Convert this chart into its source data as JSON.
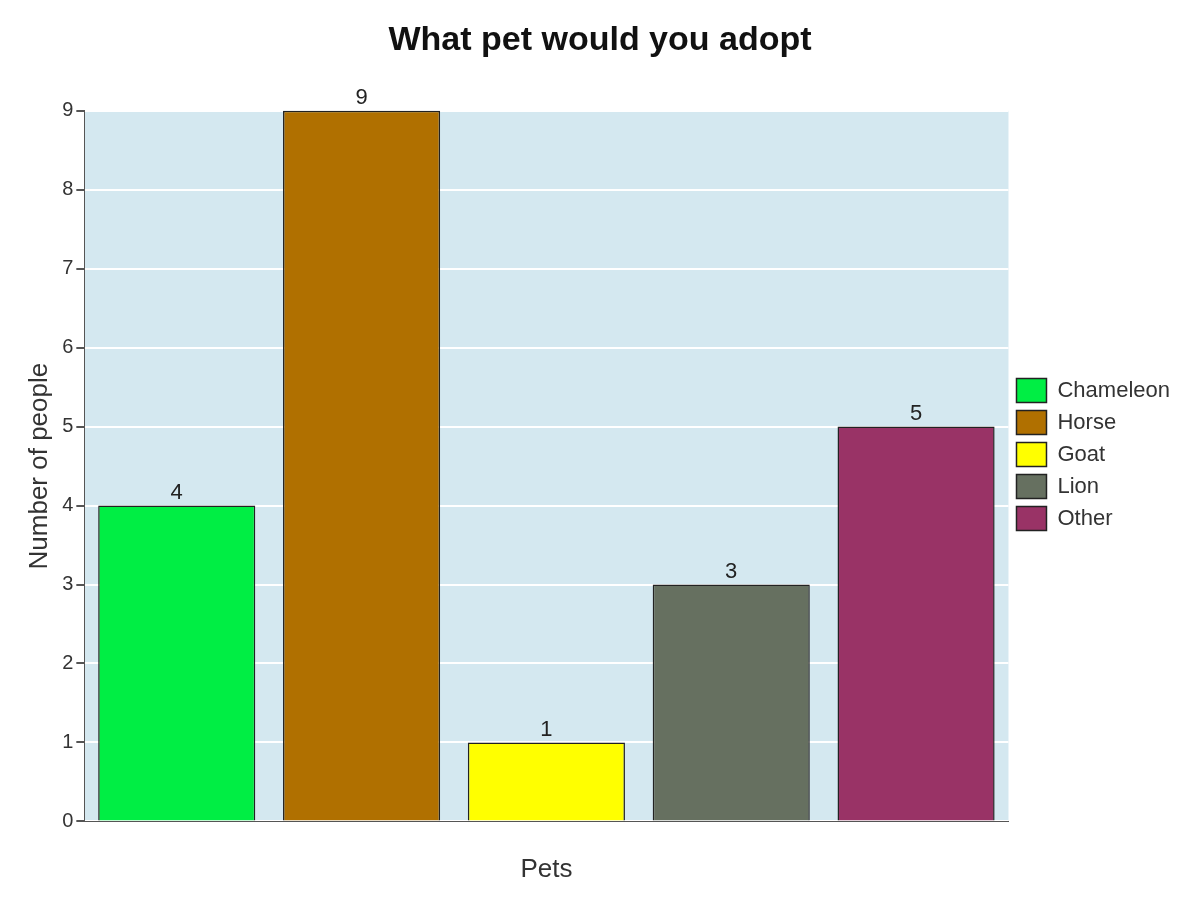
{
  "chart_data": {
    "type": "bar",
    "title": "What pet would you adopt",
    "xlabel": "Pets",
    "ylabel": "Number of people",
    "categories": [
      null,
      null,
      null,
      null,
      null
    ],
    "series": [
      {
        "name": "Chameleon",
        "color": "#00ee44",
        "values": [
          4,
          null,
          null,
          null,
          null
        ]
      },
      {
        "name": "Horse",
        "color": "#b07000",
        "values": [
          null,
          9,
          null,
          null,
          null
        ]
      },
      {
        "name": "Goat",
        "color": "#ffff00",
        "values": [
          null,
          null,
          1,
          null,
          null
        ]
      },
      {
        "name": "Lion",
        "color": "#667060",
        "values": [
          null,
          null,
          null,
          3,
          null
        ]
      },
      {
        "name": "Other",
        "color": "#993366",
        "values": [
          null,
          null,
          null,
          null,
          5
        ]
      }
    ],
    "ylim": [
      0,
      9
    ],
    "yticks": [
      0,
      1,
      2,
      3,
      4,
      5,
      6,
      7,
      8,
      9
    ],
    "grid": "y",
    "legend": "right",
    "data_labels": true
  }
}
